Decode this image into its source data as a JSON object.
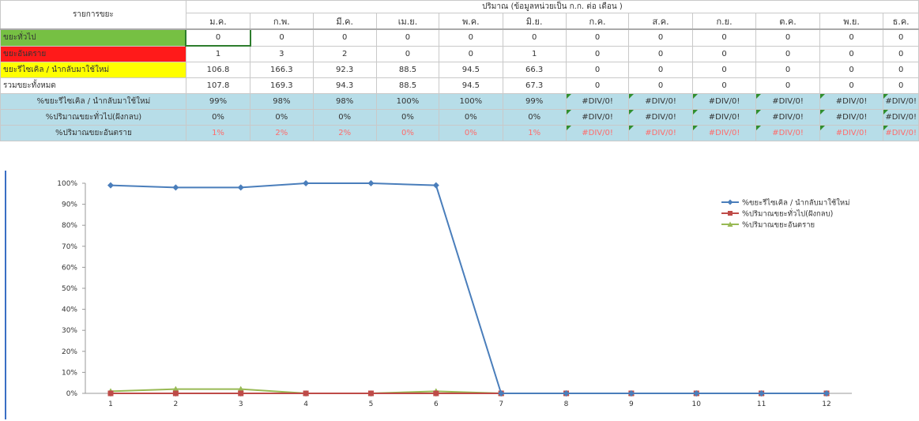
{
  "table": {
    "item_header": "รายการขยะ",
    "group_header": "ปริมาณ (ข้อมูลหน่วยเป็น ก.ก. ต่อ เดือน )",
    "months": [
      "ม.ค.",
      "ก.พ.",
      "มี.ค.",
      "เม.ย.",
      "พ.ค.",
      "มิ.ย.",
      "ก.ค.",
      "ส.ค.",
      "ก.ย.",
      "ต.ค.",
      "พ.ย.",
      "ธ.ค."
    ],
    "rows": [
      {
        "label": "ขยะทั่วไป",
        "style": "green",
        "values": [
          "0",
          "0",
          "0",
          "0",
          "0",
          "0",
          "0",
          "0",
          "0",
          "0",
          "0",
          "0"
        ]
      },
      {
        "label": "ขยะอันตราย",
        "style": "red",
        "values": [
          "1",
          "3",
          "2",
          "0",
          "0",
          "1",
          "0",
          "0",
          "0",
          "0",
          "0",
          "0"
        ]
      },
      {
        "label": "ขยะรีไซเคิล / นำกลับมาใช้ใหม่",
        "style": "yellow",
        "values": [
          "106.8",
          "166.3",
          "92.3",
          "88.5",
          "94.5",
          "66.3",
          "0",
          "0",
          "0",
          "0",
          "0",
          "0"
        ]
      },
      {
        "label": "รวมขยะทั้งหมด",
        "style": "plain",
        "values": [
          "107.8",
          "169.3",
          "94.3",
          "88.5",
          "94.5",
          "67.3",
          "0",
          "0",
          "0",
          "0",
          "0",
          "0"
        ]
      },
      {
        "label": "%ขยะรีไซเคิล / นำกลับมาใช้ใหม่",
        "style": "pct",
        "values": [
          "99%",
          "98%",
          "98%",
          "100%",
          "100%",
          "99%",
          "#DIV/0!",
          "#DIV/0!",
          "#DIV/0!",
          "#DIV/0!",
          "#DIV/0!",
          "#DIV/0!"
        ]
      },
      {
        "label": "%ปริมาณขยะทั่วไป(ฝังกลบ)",
        "style": "pct",
        "values": [
          "0%",
          "0%",
          "0%",
          "0%",
          "0%",
          "0%",
          "#DIV/0!",
          "#DIV/0!",
          "#DIV/0!",
          "#DIV/0!",
          "#DIV/0!",
          "#DIV/0!"
        ]
      },
      {
        "label": "%ปริมาณขยะอันตราย",
        "style": "pctred",
        "values": [
          "1%",
          "2%",
          "2%",
          "0%",
          "0%",
          "1%",
          "#DIV/0!",
          "#DIV/0!",
          "#DIV/0!",
          "#DIV/0!",
          "#DIV/0!",
          "#DIV/0!"
        ]
      }
    ]
  },
  "chart_data": {
    "type": "line",
    "x": [
      1,
      2,
      3,
      4,
      5,
      6,
      7,
      8,
      9,
      10,
      11,
      12
    ],
    "ylim": [
      0,
      100
    ],
    "yticks": [
      "0%",
      "10%",
      "20%",
      "30%",
      "40%",
      "50%",
      "60%",
      "70%",
      "80%",
      "90%",
      "100%"
    ],
    "legend_position": "right",
    "series": [
      {
        "name": "%ขยะรีไซเคิล / นำกลับมาใช้ใหม่",
        "color": "#4a7ebb",
        "marker": "diamond",
        "values": [
          99,
          98,
          98,
          100,
          100,
          99,
          0,
          0,
          0,
          0,
          0,
          0
        ]
      },
      {
        "name": "%ปริมาณขยะทั่วไป(ฝังกลบ)",
        "color": "#be4b48",
        "marker": "square",
        "values": [
          0,
          0,
          0,
          0,
          0,
          0,
          0,
          0,
          0,
          0,
          0,
          0
        ]
      },
      {
        "name": "%ปริมาณขยะอันตราย",
        "color": "#98b954",
        "marker": "triangle",
        "values": [
          1,
          2,
          2,
          0,
          0,
          1,
          0,
          0,
          0,
          0,
          0,
          0
        ]
      }
    ]
  }
}
